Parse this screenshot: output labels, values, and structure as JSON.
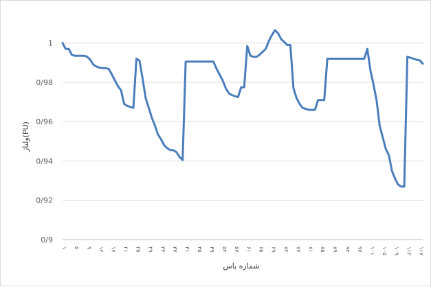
{
  "chart_data": {
    "type": "line",
    "title": "",
    "xlabel": "شماره باس",
    "ylabel": "ولتاژ(PU)",
    "ylim": [
      0.9,
      1.0
    ],
    "yticks": [
      0.9,
      0.92,
      0.94,
      0.96,
      0.98,
      1.0
    ],
    "ytick_labels": [
      "0/9",
      "0/92",
      "0/94",
      "0/96",
      "0/98",
      "1"
    ],
    "xtick_labels": [
      "۱",
      "۵",
      "۹",
      "۱۳",
      "۱۷",
      "۲۱",
      "۲۵",
      "۲۹",
      "۳۳",
      "۳۷",
      "۴۱",
      "۴۵",
      "۴۹",
      "۵۳",
      "۵۷",
      "۶۱",
      "۶۵",
      "۶۹",
      "۷۳",
      "۷۷",
      "۸۱",
      "۸۵",
      "۸۹",
      "۹۳",
      "۹۷",
      "۱۰۱",
      "۱۰۵",
      "۱۰۹",
      "۱۱۳",
      "۱۱۷"
    ],
    "grid": true,
    "line_color": "#4a7ebb",
    "series": [
      {
        "name": "",
        "x": [
          1,
          2,
          3,
          4,
          5,
          6,
          7,
          8,
          9,
          10,
          11,
          12,
          13,
          14,
          15,
          16,
          17,
          18,
          19,
          20,
          21,
          22,
          23,
          24,
          25,
          26,
          27,
          28,
          29,
          30,
          31,
          32,
          33,
          34,
          35,
          36,
          37,
          38,
          39,
          40,
          41,
          42,
          43,
          44,
          45,
          46,
          47,
          48,
          49,
          50,
          51,
          52,
          53,
          54,
          55,
          56,
          57,
          58,
          59,
          60,
          61,
          62,
          63,
          64,
          65,
          66,
          67,
          68,
          69,
          70,
          71,
          72,
          73,
          74,
          75,
          76,
          77,
          78,
          79,
          80,
          81,
          82,
          83,
          84,
          85,
          86,
          87,
          88,
          89,
          90,
          91,
          92,
          93,
          94,
          95,
          96,
          97,
          98,
          99,
          100,
          101,
          102,
          103,
          104,
          105,
          106,
          107,
          108,
          109,
          110,
          111,
          112,
          113,
          114,
          115,
          116,
          117,
          118
        ],
        "values": [
          1.0,
          0.997,
          0.997,
          0.994,
          0.9935,
          0.9935,
          0.9935,
          0.9935,
          0.993,
          0.9915,
          0.989,
          0.988,
          0.9875,
          0.9872,
          0.9872,
          0.9868,
          0.984,
          0.981,
          0.978,
          0.976,
          0.969,
          0.968,
          0.9675,
          0.967,
          0.992,
          0.991,
          0.982,
          0.972,
          0.967,
          0.962,
          0.958,
          0.9535,
          0.951,
          0.948,
          0.9465,
          0.9455,
          0.9455,
          0.9445,
          0.942,
          0.9405,
          0.9905,
          0.9905,
          0.9905,
          0.9905,
          0.9905,
          0.9905,
          0.9905,
          0.9905,
          0.9905,
          0.9905,
          0.987,
          0.984,
          0.981,
          0.977,
          0.9745,
          0.9735,
          0.973,
          0.9725,
          0.9775,
          0.9775,
          0.9985,
          0.9935,
          0.993,
          0.993,
          0.994,
          0.9955,
          0.997,
          1.001,
          1.004,
          1.0065,
          1.005,
          1.002,
          1.0005,
          0.999,
          0.999,
          0.977,
          0.972,
          0.969,
          0.967,
          0.9665,
          0.966,
          0.966,
          0.966,
          0.971,
          0.971,
          0.971,
          0.992,
          0.992,
          0.992,
          0.992,
          0.992,
          0.992,
          0.992,
          0.992,
          0.992,
          0.992,
          0.992,
          0.992,
          0.992,
          0.997,
          0.986,
          0.979,
          0.971,
          0.958,
          0.952,
          0.946,
          0.943,
          0.935,
          0.931,
          0.928,
          0.927,
          0.927,
          0.993,
          0.9925,
          0.992,
          0.9915,
          0.9912,
          0.9895
        ]
      }
    ]
  }
}
